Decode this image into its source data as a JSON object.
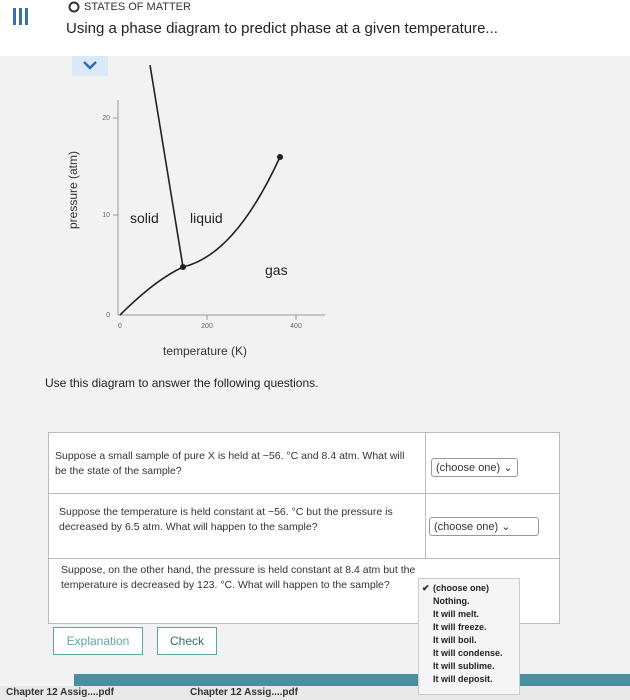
{
  "header": {
    "section": "STATES OF MATTER",
    "title": "Using a phase diagram to predict phase at a given temperature..."
  },
  "diagram": {
    "y_label": "pressure (atm)",
    "x_label": "temperature (K)",
    "yticks": [
      0,
      10,
      20
    ],
    "xticks": [
      0,
      200,
      400
    ],
    "regions": [
      "solid",
      "liquid",
      "gas"
    ]
  },
  "instruction": "Use this diagram to answer the following questions.",
  "questions": [
    {
      "text": "Suppose a small sample of pure X is held at −56. °C and 8.4 atm. What will be the state of the sample?",
      "answer": "(choose one)"
    },
    {
      "text": "Suppose the temperature is held constant at −56. °C but the pressure is decreased by 6.5 atm. What will happen to the sample?",
      "answer": "(choose one)"
    },
    {
      "text": "Suppose, on the other hand, the pressure is held constant at 8.4 atm but the temperature is decreased by 123. °C. What will happen to the sample?"
    }
  ],
  "dropdown": {
    "options": [
      "(choose one)",
      "Nothing.",
      "It will melt.",
      "It will freeze.",
      "It will boil.",
      "It will condense.",
      "It will sublime.",
      "It will deposit."
    ]
  },
  "buttons": [
    "Explanation",
    "Check"
  ],
  "downloads": [
    "Chapter 12 Assig....pdf",
    "Chapter 12 Assig....pdf"
  ]
}
